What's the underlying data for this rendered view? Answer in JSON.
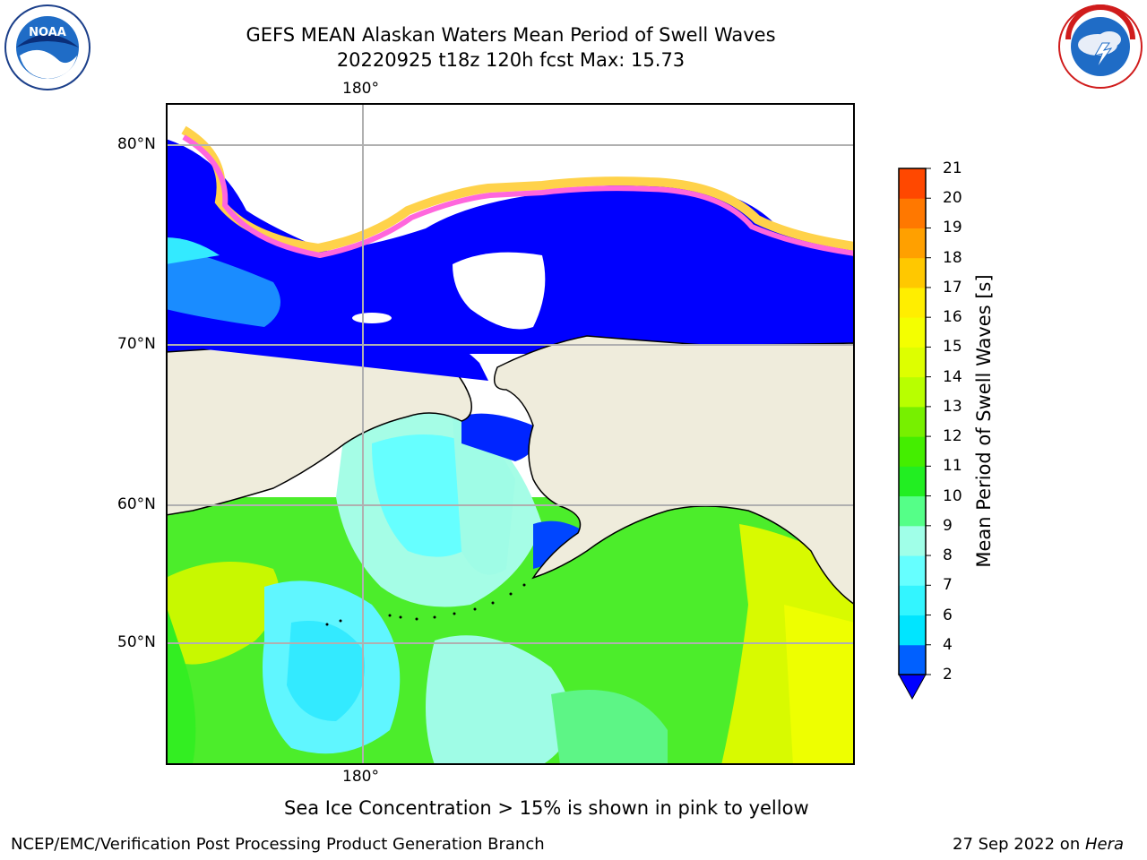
{
  "header": {
    "title_line1": "GEFS MEAN Alaskan Waters Mean Period of Swell Waves",
    "title_line2": "20220925 t18z 120h fcst   Max: 15.73"
  },
  "logos": {
    "left": {
      "icon": "noaa-logo-icon",
      "text": "NOAA"
    },
    "right": {
      "icon": "nws-logo-icon",
      "text": "NATIONAL WEATHER SERVICE"
    }
  },
  "map": {
    "lat_labels": [
      "80°N",
      "70°N",
      "60°N",
      "50°N"
    ],
    "lon_label_top": "180°",
    "lon_label_bottom": "180°",
    "colors": {
      "land": "#efecdc",
      "coast": "#000000",
      "grid": "#b0b0b0",
      "ice_low": "#ff55ff",
      "ice_high": "#ffe84a"
    }
  },
  "colorbar": {
    "label": "Mean Period of Swell Waves [s]",
    "ticks": [
      "2",
      "4",
      "6",
      "7",
      "8",
      "9",
      "10",
      "11",
      "12",
      "13",
      "14",
      "15",
      "16",
      "17",
      "18",
      "19",
      "20",
      "21"
    ],
    "colors": [
      "#0060ff",
      "#00e5ff",
      "#33f5ff",
      "#66ffff",
      "#a0ffe8",
      "#55ff88",
      "#22ee22",
      "#44ee00",
      "#77f000",
      "#b8ff00",
      "#ddff00",
      "#f4ff00",
      "#ffee00",
      "#ffc800",
      "#ffa000",
      "#ff7800",
      "#ff4800",
      "#ff1000"
    ],
    "extend_color": "#0000ff"
  },
  "note": "Sea Ice Concentration > 15% is shown in pink to yellow",
  "footer": {
    "left": "NCEP/EMC/Verification Post Processing Product Generation Branch",
    "right_date": "27 Sep 2022 on ",
    "right_host": "Hera"
  }
}
